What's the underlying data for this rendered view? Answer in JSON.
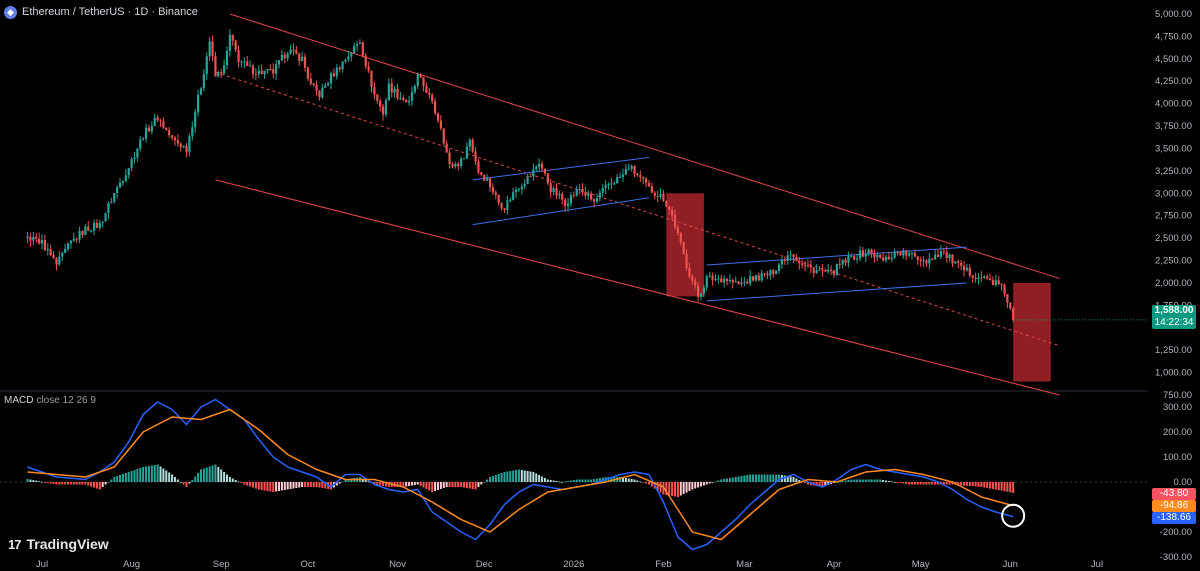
{
  "header": {
    "coin_glyph": "◆",
    "coin_icon": "ethereum-icon",
    "symbol": "Ethereum / TetherUS · 1D · Binance"
  },
  "macd": {
    "label": "MACD",
    "params": "close 12 26 9"
  },
  "brand": {
    "logo": "17",
    "name": "TradingView"
  },
  "price_tags": {
    "last_price": "1,588.00",
    "countdown": "14:22:34",
    "hist": "-43.80",
    "signal": "-94.86",
    "macd": "-138.66"
  },
  "colors": {
    "up": "#26a69a",
    "down": "#ef5350",
    "channel": "#e04848",
    "flag": "#3f6fe8",
    "macd_line": "#2962ff",
    "signal_line": "#ff8a1f",
    "last_price": "#089981"
  },
  "chart_data": [
    {
      "type": "candlestick",
      "title": "Ethereum / TetherUS · 1D · Binance",
      "x_ticks": [
        "Jul",
        "Aug",
        "Sep",
        "Oct",
        "Nov",
        "Dec",
        "2026",
        "Feb",
        "Mar",
        "Apr",
        "May",
        "Jun",
        "Jul"
      ],
      "y_ticks": [
        "5,000.00",
        "4,750.00",
        "4,500.00",
        "4,250.00",
        "4,000.00",
        "3,750.00",
        "3,500.00",
        "3,250.00",
        "3,000.00",
        "2,750.00",
        "2,500.00",
        "2,250.00",
        "2,000.00",
        "1,750.00",
        "1,250.00",
        "1,000.00",
        "750.00"
      ],
      "ylim": [
        700,
        5050
      ],
      "x_range_days": [
        -5,
        370
      ],
      "price_path": [
        [
          -5,
          2500
        ],
        [
          0,
          2450
        ],
        [
          5,
          2200
        ],
        [
          10,
          2450
        ],
        [
          15,
          2600
        ],
        [
          20,
          2650
        ],
        [
          25,
          3000
        ],
        [
          30,
          3300
        ],
        [
          35,
          3650
        ],
        [
          40,
          3850
        ],
        [
          45,
          3600
        ],
        [
          50,
          3500
        ],
        [
          55,
          4200
        ],
        [
          58,
          4700
        ],
        [
          60,
          4300
        ],
        [
          63,
          4400
        ],
        [
          65,
          4750
        ],
        [
          68,
          4500
        ],
        [
          71,
          4400
        ],
        [
          75,
          4350
        ],
        [
          80,
          4350
        ],
        [
          85,
          4600
        ],
        [
          90,
          4500
        ],
        [
          93,
          4200
        ],
        [
          96,
          4100
        ],
        [
          100,
          4300
        ],
        [
          105,
          4500
        ],
        [
          110,
          4700
        ],
        [
          112,
          4450
        ],
        [
          115,
          4100
        ],
        [
          118,
          3900
        ],
        [
          120,
          4200
        ],
        [
          123,
          4100
        ],
        [
          127,
          4000
        ],
        [
          130,
          4300
        ],
        [
          133,
          4150
        ],
        [
          138,
          3750
        ],
        [
          141,
          3300
        ],
        [
          145,
          3350
        ],
        [
          148,
          3600
        ],
        [
          151,
          3250
        ],
        [
          154,
          3150
        ],
        [
          158,
          2900
        ],
        [
          160,
          2850
        ],
        [
          164,
          3050
        ],
        [
          169,
          3200
        ],
        [
          172,
          3350
        ],
        [
          176,
          3050
        ],
        [
          181,
          2900
        ],
        [
          186,
          3050
        ],
        [
          191,
          2900
        ],
        [
          196,
          3100
        ],
        [
          201,
          3200
        ],
        [
          203,
          3300
        ],
        [
          206,
          3200
        ],
        [
          210,
          3050
        ],
        [
          215,
          2950
        ],
        [
          218,
          2750
        ],
        [
          223,
          2200
        ],
        [
          227,
          1850
        ],
        [
          230,
          2050
        ],
        [
          236,
          2050
        ],
        [
          241,
          1980
        ],
        [
          246,
          2050
        ],
        [
          252,
          2100
        ],
        [
          256,
          2250
        ],
        [
          259,
          2350
        ],
        [
          263,
          2200
        ],
        [
          267,
          2150
        ],
        [
          273,
          2100
        ],
        [
          276,
          2200
        ],
        [
          281,
          2300
        ],
        [
          286,
          2350
        ],
        [
          291,
          2250
        ],
        [
          296,
          2350
        ],
        [
          301,
          2300
        ],
        [
          306,
          2250
        ],
        [
          311,
          2350
        ],
        [
          315,
          2250
        ],
        [
          318,
          2150
        ],
        [
          322,
          2100
        ],
        [
          326,
          2050
        ],
        [
          330,
          2000
        ],
        [
          333,
          1900
        ],
        [
          336,
          1588
        ]
      ],
      "last_close": 1588.0,
      "channel": {
        "upper": [
          [
            65,
            5000
          ],
          [
            352,
            2050
          ]
        ],
        "mid": [
          [
            60,
            4350
          ],
          [
            352,
            1300
          ]
        ],
        "lower": [
          [
            60,
            3150
          ],
          [
            352,
            750
          ]
        ]
      },
      "flags": [
        {
          "upper": [
            [
              149,
              3150
            ],
            [
              210,
              3400
            ]
          ],
          "lower": [
            [
              149,
              2650
            ],
            [
              210,
              2950
            ]
          ]
        },
        {
          "upper": [
            [
              230,
              2200
            ],
            [
              320,
              2400
            ]
          ],
          "lower": [
            [
              230,
              1800
            ],
            [
              320,
              2000
            ]
          ]
        }
      ],
      "boxes": [
        {
          "x": [
            216,
            229
          ],
          "y": [
            1850,
            3000
          ],
          "color": "#a8242c"
        },
        {
          "x": [
            336,
            349
          ],
          "y": [
            900,
            2000
          ],
          "color": "#a8242c"
        }
      ]
    },
    {
      "type": "line",
      "title": "MACD close 12 26 9",
      "y_ticks": [
        "300.00",
        "200.00",
        "100.00",
        "0.00",
        "-200.00",
        "-300.00"
      ],
      "ylim": [
        -300,
        330
      ],
      "series": [
        {
          "name": "MACD",
          "points": [
            [
              -5,
              60
            ],
            [
              5,
              20
            ],
            [
              15,
              10
            ],
            [
              20,
              40
            ],
            [
              25,
              80
            ],
            [
              30,
              160
            ],
            [
              35,
              270
            ],
            [
              40,
              320
            ],
            [
              45,
              290
            ],
            [
              50,
              230
            ],
            [
              55,
              300
            ],
            [
              60,
              330
            ],
            [
              65,
              290
            ],
            [
              70,
              250
            ],
            [
              75,
              170
            ],
            [
              80,
              100
            ],
            [
              85,
              60
            ],
            [
              90,
              40
            ],
            [
              95,
              20
            ],
            [
              100,
              -20
            ],
            [
              105,
              30
            ],
            [
              110,
              30
            ],
            [
              115,
              -10
            ],
            [
              120,
              -30
            ],
            [
              125,
              -40
            ],
            [
              130,
              -30
            ],
            [
              135,
              -120
            ],
            [
              140,
              -160
            ],
            [
              145,
              -200
            ],
            [
              150,
              -230
            ],
            [
              155,
              -170
            ],
            [
              160,
              -90
            ],
            [
              165,
              -40
            ],
            [
              170,
              -10
            ],
            [
              175,
              -20
            ],
            [
              180,
              -30
            ],
            [
              185,
              -20
            ],
            [
              190,
              -10
            ],
            [
              195,
              10
            ],
            [
              200,
              30
            ],
            [
              205,
              40
            ],
            [
              210,
              30
            ],
            [
              215,
              -80
            ],
            [
              220,
              -220
            ],
            [
              225,
              -270
            ],
            [
              230,
              -250
            ],
            [
              235,
              -200
            ],
            [
              240,
              -150
            ],
            [
              245,
              -90
            ],
            [
              250,
              -40
            ],
            [
              255,
              10
            ],
            [
              260,
              30
            ],
            [
              265,
              0
            ],
            [
              270,
              -20
            ],
            [
              275,
              10
            ],
            [
              280,
              50
            ],
            [
              285,
              70
            ],
            [
              290,
              50
            ],
            [
              295,
              40
            ],
            [
              300,
              30
            ],
            [
              305,
              20
            ],
            [
              310,
              0
            ],
            [
              315,
              -30
            ],
            [
              320,
              -70
            ],
            [
              325,
              -100
            ],
            [
              330,
              -120
            ],
            [
              336,
              -138.66
            ]
          ]
        },
        {
          "name": "Signal",
          "points": [
            [
              -5,
              40
            ],
            [
              5,
              30
            ],
            [
              15,
              20
            ],
            [
              25,
              60
            ],
            [
              35,
              200
            ],
            [
              45,
              260
            ],
            [
              55,
              250
            ],
            [
              65,
              290
            ],
            [
              75,
              210
            ],
            [
              85,
              110
            ],
            [
              95,
              50
            ],
            [
              105,
              10
            ],
            [
              115,
              10
            ],
            [
              125,
              -20
            ],
            [
              135,
              -80
            ],
            [
              145,
              -150
            ],
            [
              155,
              -200
            ],
            [
              165,
              -110
            ],
            [
              175,
              -40
            ],
            [
              185,
              -20
            ],
            [
              195,
              0
            ],
            [
              205,
              30
            ],
            [
              215,
              -20
            ],
            [
              225,
              -200
            ],
            [
              235,
              -230
            ],
            [
              245,
              -130
            ],
            [
              255,
              -30
            ],
            [
              265,
              10
            ],
            [
              275,
              0
            ],
            [
              285,
              40
            ],
            [
              295,
              50
            ],
            [
              305,
              30
            ],
            [
              315,
              0
            ],
            [
              325,
              -60
            ],
            [
              336,
              -94.86
            ]
          ]
        }
      ],
      "histogram": [
        [
          -5,
          12
        ],
        [
          5,
          -10
        ],
        [
          15,
          -10
        ],
        [
          20,
          -30
        ],
        [
          25,
          20
        ],
        [
          30,
          40
        ],
        [
          35,
          60
        ],
        [
          40,
          70
        ],
        [
          45,
          30
        ],
        [
          50,
          -20
        ],
        [
          55,
          50
        ],
        [
          60,
          70
        ],
        [
          65,
          20
        ],
        [
          70,
          -10
        ],
        [
          75,
          -30
        ],
        [
          80,
          -40
        ],
        [
          85,
          -30
        ],
        [
          90,
          -20
        ],
        [
          95,
          -20
        ],
        [
          100,
          -30
        ],
        [
          105,
          10
        ],
        [
          110,
          20
        ],
        [
          115,
          -10
        ],
        [
          120,
          -20
        ],
        [
          125,
          -20
        ],
        [
          130,
          -10
        ],
        [
          135,
          -40
        ],
        [
          140,
          -20
        ],
        [
          145,
          -20
        ],
        [
          150,
          -30
        ],
        [
          155,
          20
        ],
        [
          160,
          40
        ],
        [
          165,
          50
        ],
        [
          170,
          40
        ],
        [
          175,
          10
        ],
        [
          180,
          0
        ],
        [
          185,
          10
        ],
        [
          190,
          10
        ],
        [
          195,
          20
        ],
        [
          200,
          20
        ],
        [
          205,
          10
        ],
        [
          210,
          -10
        ],
        [
          215,
          -50
        ],
        [
          220,
          -60
        ],
        [
          225,
          -30
        ],
        [
          230,
          -10
        ],
        [
          235,
          10
        ],
        [
          240,
          20
        ],
        [
          245,
          30
        ],
        [
          250,
          30
        ],
        [
          255,
          30
        ],
        [
          260,
          20
        ],
        [
          265,
          -10
        ],
        [
          270,
          -20
        ],
        [
          275,
          0
        ],
        [
          280,
          10
        ],
        [
          285,
          10
        ],
        [
          290,
          10
        ],
        [
          295,
          0
        ],
        [
          300,
          -10
        ],
        [
          305,
          -10
        ],
        [
          310,
          -10
        ],
        [
          315,
          -10
        ],
        [
          320,
          -15
        ],
        [
          325,
          -20
        ],
        [
          330,
          -30
        ],
        [
          336,
          -43.8
        ]
      ]
    }
  ]
}
